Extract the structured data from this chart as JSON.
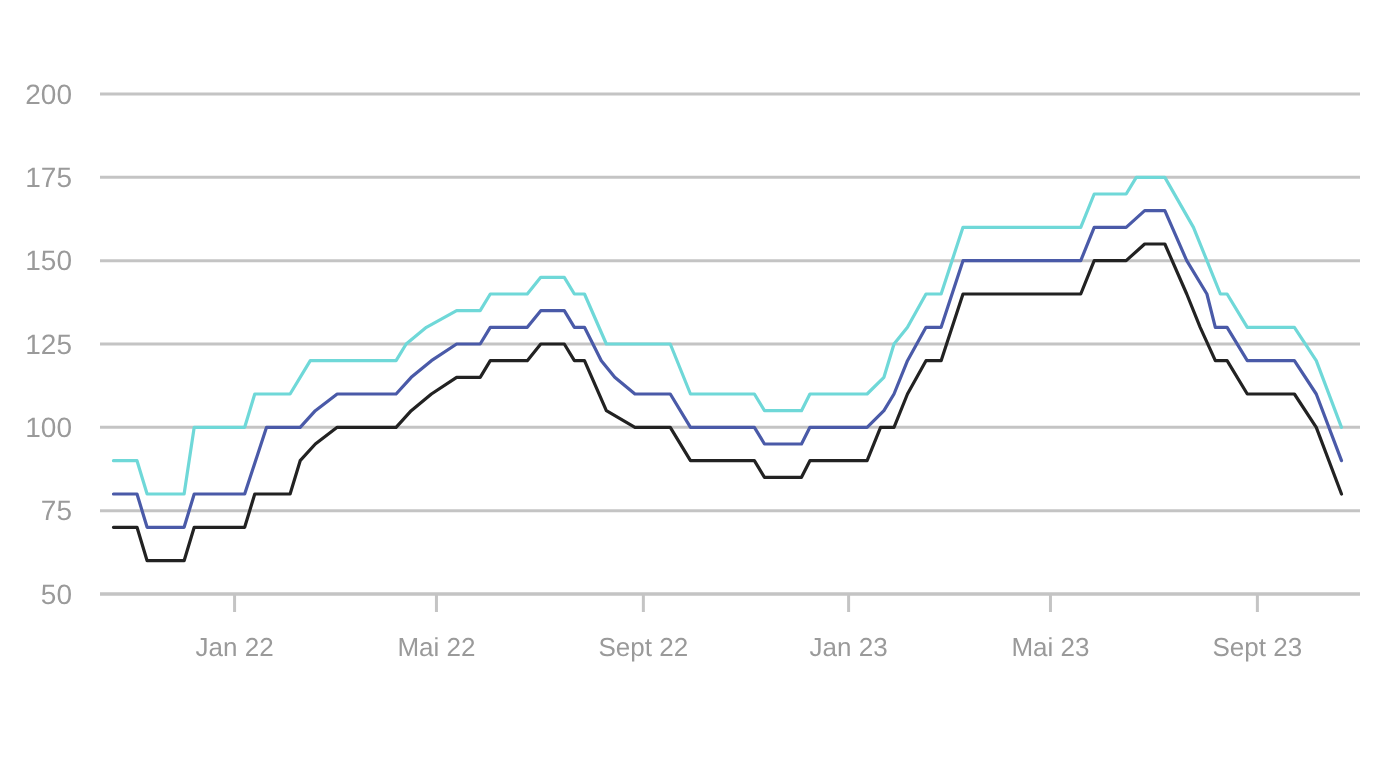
{
  "chart_data": {
    "type": "line",
    "xlim": [
      "2021-10-13",
      "2023-11-01"
    ],
    "xticks": [
      {
        "value": "2022-01-01",
        "label": "Jan 22"
      },
      {
        "value": "2022-05-01",
        "label": "Mai 22"
      },
      {
        "value": "2022-09-01",
        "label": "Sept 22"
      },
      {
        "value": "2023-01-01",
        "label": "Jan 23"
      },
      {
        "value": "2023-05-01",
        "label": "Mai 23"
      },
      {
        "value": "2023-09-01",
        "label": "Sept 23"
      }
    ],
    "ylim": [
      50,
      200
    ],
    "yticks": [
      50,
      75,
      100,
      125,
      150,
      175,
      200
    ],
    "grid": "y",
    "marker": "none",
    "line_style": "solid",
    "series": [
      {
        "color": "#6fd8d8",
        "x": [
          "2021-10-21",
          "2021-11-04",
          "2021-11-10",
          "2021-12-02",
          "2021-12-08",
          "2022-01-07",
          "2022-01-13",
          "2022-02-03",
          "2022-02-15",
          "2022-04-07",
          "2022-04-13",
          "2022-04-25",
          "2022-05-13",
          "2022-05-27",
          "2022-06-02",
          "2022-06-24",
          "2022-07-02",
          "2022-07-16",
          "2022-07-22",
          "2022-07-28",
          "2022-08-10",
          "2022-09-17",
          "2022-09-29",
          "2022-11-06",
          "2022-11-12",
          "2022-12-04",
          "2022-12-09",
          "2023-01-12",
          "2023-01-22",
          "2023-01-28",
          "2023-02-05",
          "2023-02-16",
          "2023-02-25",
          "2023-03-10",
          "2023-05-19",
          "2023-05-27",
          "2023-06-15",
          "2023-06-21",
          "2023-07-08",
          "2023-07-25",
          "2023-08-02",
          "2023-08-10",
          "2023-08-14",
          "2023-08-26",
          "2023-09-23",
          "2023-10-06",
          "2023-10-21"
        ],
        "values": [
          90,
          90,
          80,
          80,
          100,
          100,
          110,
          110,
          120,
          120,
          125,
          130,
          135,
          135,
          140,
          140,
          145,
          145,
          140,
          140,
          125,
          125,
          110,
          110,
          105,
          105,
          110,
          110,
          115,
          125,
          130,
          140,
          140,
          160,
          160,
          170,
          170,
          175,
          175,
          160,
          150,
          140,
          140,
          130,
          130,
          120,
          100
        ]
      },
      {
        "color": "#4a5aa8",
        "x": [
          "2021-10-21",
          "2021-11-04",
          "2021-11-10",
          "2021-12-02",
          "2021-12-08",
          "2022-01-07",
          "2022-01-20",
          "2022-02-09",
          "2022-02-18",
          "2022-03-03",
          "2022-04-07",
          "2022-04-16",
          "2022-04-28",
          "2022-05-13",
          "2022-05-27",
          "2022-06-02",
          "2022-06-24",
          "2022-07-02",
          "2022-07-16",
          "2022-07-22",
          "2022-07-28",
          "2022-08-07",
          "2022-08-15",
          "2022-08-27",
          "2022-09-17",
          "2022-09-29",
          "2022-11-06",
          "2022-11-12",
          "2022-12-04",
          "2022-12-09",
          "2023-01-12",
          "2023-01-22",
          "2023-01-28",
          "2023-02-05",
          "2023-02-16",
          "2023-02-25",
          "2023-03-10",
          "2023-05-19",
          "2023-05-27",
          "2023-06-15",
          "2023-06-26",
          "2023-07-08",
          "2023-07-21",
          "2023-08-02",
          "2023-08-07",
          "2023-08-14",
          "2023-08-26",
          "2023-09-23",
          "2023-10-06",
          "2023-10-21"
        ],
        "values": [
          80,
          80,
          70,
          70,
          80,
          80,
          100,
          100,
          105,
          110,
          110,
          115,
          120,
          125,
          125,
          130,
          130,
          135,
          135,
          130,
          130,
          120,
          115,
          110,
          110,
          100,
          100,
          95,
          95,
          100,
          100,
          105,
          110,
          120,
          130,
          130,
          150,
          150,
          160,
          160,
          165,
          165,
          150,
          140,
          130,
          130,
          120,
          120,
          110,
          90
        ]
      },
      {
        "color": "#222222",
        "x": [
          "2021-10-21",
          "2021-11-04",
          "2021-11-10",
          "2021-12-02",
          "2021-12-08",
          "2022-01-07",
          "2022-01-13",
          "2022-02-03",
          "2022-02-09",
          "2022-02-18",
          "2022-03-03",
          "2022-04-07",
          "2022-04-16",
          "2022-04-28",
          "2022-05-13",
          "2022-05-27",
          "2022-06-02",
          "2022-06-24",
          "2022-07-02",
          "2022-07-16",
          "2022-07-22",
          "2022-07-28",
          "2022-08-10",
          "2022-08-27",
          "2022-09-17",
          "2022-09-29",
          "2022-11-06",
          "2022-11-12",
          "2022-12-04",
          "2022-12-09",
          "2023-01-12",
          "2023-01-20",
          "2023-01-28",
          "2023-02-05",
          "2023-02-16",
          "2023-02-25",
          "2023-03-10",
          "2023-05-19",
          "2023-05-27",
          "2023-06-15",
          "2023-06-26",
          "2023-07-08",
          "2023-07-21",
          "2023-07-29",
          "2023-08-07",
          "2023-08-14",
          "2023-08-26",
          "2023-09-23",
          "2023-10-06",
          "2023-10-21"
        ],
        "values": [
          70,
          70,
          60,
          60,
          70,
          70,
          80,
          80,
          90,
          95,
          100,
          100,
          105,
          110,
          115,
          115,
          120,
          120,
          125,
          125,
          120,
          120,
          105,
          100,
          100,
          90,
          90,
          85,
          85,
          90,
          90,
          100,
          100,
          110,
          120,
          120,
          140,
          140,
          150,
          150,
          155,
          155,
          140,
          130,
          120,
          120,
          110,
          110,
          100,
          80
        ]
      }
    ]
  }
}
